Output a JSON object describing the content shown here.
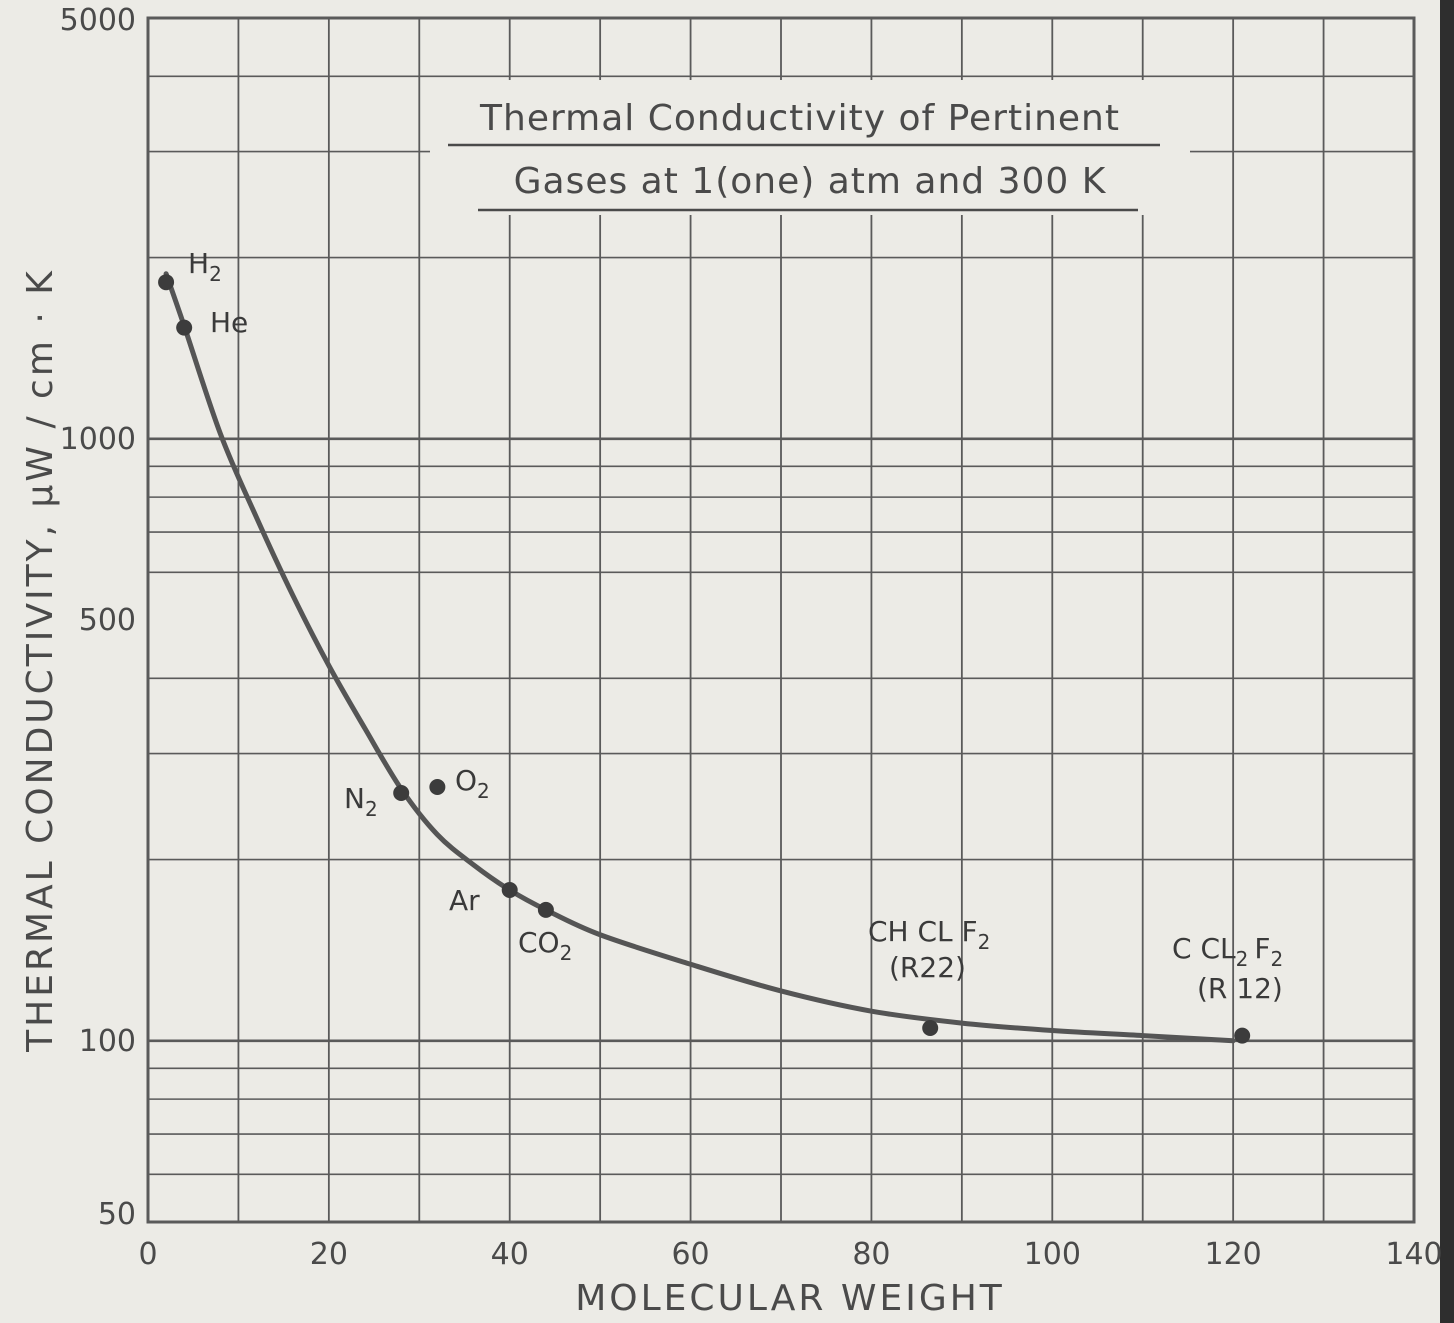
{
  "chart_data": {
    "type": "scatter",
    "title": "Thermal Conductivity of Pertinent",
    "subtitle": "Gases at 1(one) atm and 300 K",
    "xlabel": "MOLECULAR WEIGHT",
    "ylabel": "THERMAL CONDUCTIVITY, μW / cm · K",
    "xlim": [
      0,
      140
    ],
    "ylim": [
      50,
      5000
    ],
    "yscale": "log",
    "grid": true,
    "x_ticks": [
      "0",
      "20",
      "40",
      "60",
      "80",
      "100",
      "120",
      "140"
    ],
    "y_ticks": [
      "50",
      "100",
      "500",
      "1000",
      "5000"
    ],
    "series": [
      {
        "points": [
          {
            "label": "H₂",
            "x": 2,
            "y": 1820
          },
          {
            "label": "He",
            "x": 4,
            "y": 1530
          },
          {
            "label": "N₂",
            "x": 28,
            "y": 258
          },
          {
            "label": "O₂",
            "x": 32,
            "y": 264
          },
          {
            "label": "Ar",
            "x": 40,
            "y": 178
          },
          {
            "label": "CO₂",
            "x": 44,
            "y": 165
          },
          {
            "label": "CH CL F₂ (R22)",
            "x": 86.5,
            "y": 105
          },
          {
            "label": "C CL₂ F₂ (R12)",
            "x": 121,
            "y": 102
          }
        ]
      }
    ],
    "curve": {
      "x": [
        2,
        4,
        8,
        12,
        16,
        20,
        24,
        28,
        32,
        36,
        40,
        44,
        50,
        60,
        70,
        80,
        90,
        100,
        110,
        120
      ],
      "y": [
        1880,
        1540,
        1020,
        740,
        550,
        420,
        330,
        262,
        220,
        196,
        178,
        165,
        150,
        134,
        121,
        112,
        107,
        104,
        102,
        100
      ]
    }
  },
  "labels": {
    "h2": "H",
    "h2_sub": "2",
    "he": "He",
    "n2": "N",
    "n2_sub": "2",
    "o2": "O",
    "o2_sub": "2",
    "ar": "Ar",
    "co2": "CO",
    "co2_sub": "2",
    "r22_a": "CH CL F",
    "r22_a_sub": "2",
    "r22_b": "(R22)",
    "r12_a1": "C CL",
    "r12_a1_sub": "2",
    "r12_a2": "F",
    "r12_a2_sub": "2",
    "r12_b": "(R 12)"
  },
  "colors": {
    "ink": "#4a4a4a",
    "grid": "#5a5a5a",
    "curve": "#555555",
    "marker": "#3c3c3c",
    "paper": "#ecebe6"
  }
}
